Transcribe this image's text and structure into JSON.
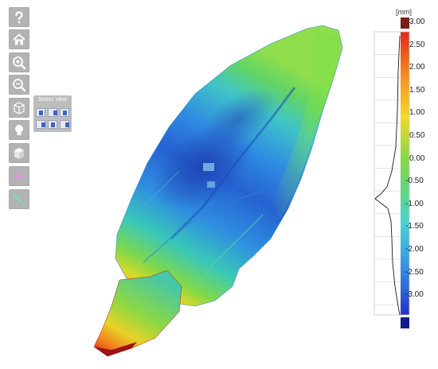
{
  "toolbar": {
    "buttons": [
      {
        "name": "help-icon",
        "glyph": "?"
      },
      {
        "name": "home-icon"
      },
      {
        "name": "zoom-in-icon"
      },
      {
        "name": "zoom-out-icon"
      },
      {
        "name": "select-view-cube-icon"
      },
      {
        "name": "light-bulb-icon"
      },
      {
        "name": "solid-cube-icon"
      },
      {
        "name": "add-point-icon"
      },
      {
        "name": "measure-line-icon"
      }
    ]
  },
  "select_view": {
    "title": "Select View"
  },
  "color_scale": {
    "unit": "[mm]",
    "labels": [
      "3.00",
      "2.50",
      "2.00",
      "1.50",
      "1.00",
      "0.50",
      "0.00",
      "-0.50",
      "-1.00",
      "-1.50",
      "-2.00",
      "-2.50",
      "-3.00"
    ],
    "top_color": "#7b1f17",
    "bottom_color": "#101e8a"
  }
}
